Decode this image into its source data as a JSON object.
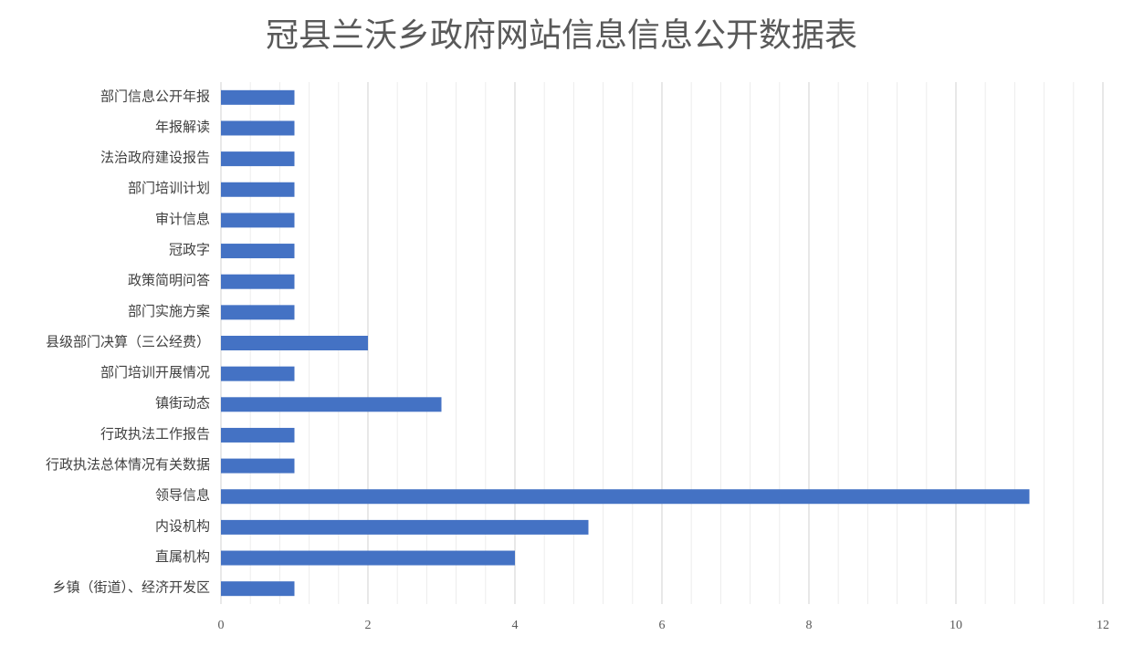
{
  "chart_data": {
    "type": "bar",
    "orientation": "horizontal",
    "title": "冠县兰沃乡政府网站信息信息公开数据表",
    "categories": [
      "部门信息公开年报",
      "年报解读",
      "法治政府建设报告",
      "部门培训计划",
      "审计信息",
      "冠政字",
      "政策简明问答",
      "部门实施方案",
      "县级部门决算（三公经费）",
      "部门培训开展情况",
      "镇街动态",
      "行政执法工作报告",
      "行政执法总体情况有关数据",
      "领导信息",
      "内设机构",
      "直属机构",
      "乡镇（街道）、经济开发区"
    ],
    "values": [
      1,
      1,
      1,
      1,
      1,
      1,
      1,
      1,
      2,
      1,
      3,
      1,
      1,
      11,
      5,
      4,
      1
    ],
    "color": "#4472c4",
    "xlim": [
      0,
      12
    ],
    "xticks": [
      0,
      2,
      4,
      6,
      8,
      10,
      12
    ],
    "xminorticks": [
      0.4,
      0.8,
      1.2,
      1.6,
      2.4,
      2.8,
      3.2,
      3.6,
      4.4,
      4.8,
      5.2,
      5.6,
      6.4,
      6.8,
      7.2,
      7.6,
      8.4,
      8.8,
      9.2,
      9.6,
      10.4,
      10.8,
      11.2,
      11.6
    ],
    "grid": true
  }
}
